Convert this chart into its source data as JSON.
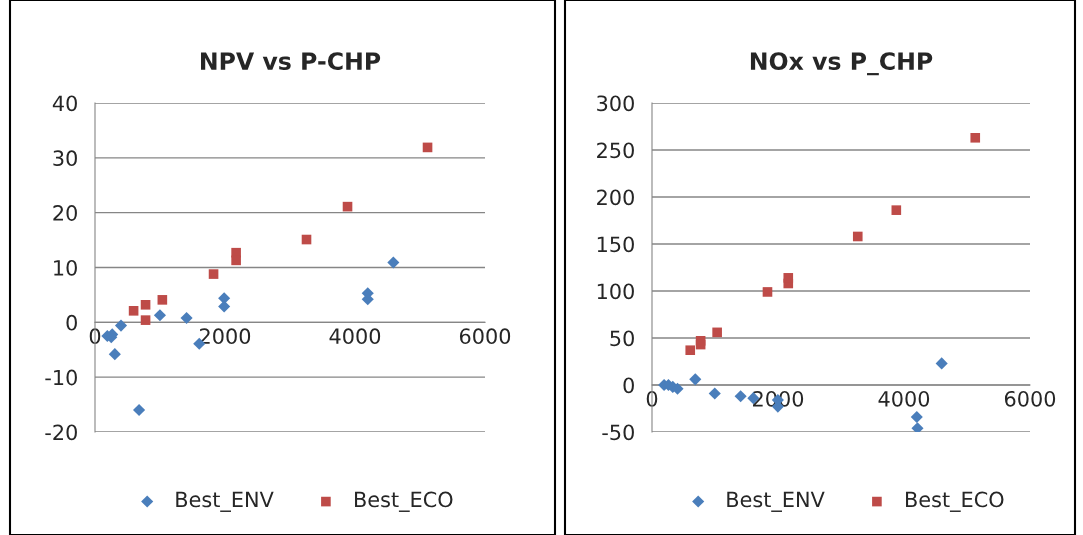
{
  "chart_data": [
    {
      "type": "scatter",
      "title": "NPV vs P-CHP",
      "xlim": [
        0,
        6000
      ],
      "xticks": [
        0,
        2000,
        4000,
        6000
      ],
      "ylim": [
        -20,
        40
      ],
      "yticks": [
        -20,
        -10,
        0,
        10,
        20,
        30,
        40
      ],
      "grid": "y",
      "legend": "bottom",
      "series": [
        {
          "name": "Best_ENV",
          "color": "#4a7ebb",
          "marker": "diamond",
          "x": [
            190,
            250,
            265,
            305,
            400,
            678,
            999,
            1409,
            1604,
            1987,
            1987,
            4196,
            4196,
            4590
          ],
          "values": [
            -2.5,
            -2.7,
            -2.2,
            -5.8,
            -0.6,
            -16.0,
            1.3,
            0.8,
            -3.9,
            4.4,
            2.9,
            5.3,
            4.2,
            10.9
          ]
        },
        {
          "name": "Best_ECO",
          "color": "#be4b48",
          "marker": "square",
          "x": [
            594,
            778,
            778,
            1036,
            1824,
            2171,
            2171,
            3254,
            3885,
            5116
          ],
          "values": [
            2.1,
            3.2,
            0.4,
            4.1,
            8.8,
            12.7,
            11.3,
            15.1,
            21.1,
            31.9
          ]
        }
      ]
    },
    {
      "type": "scatter",
      "title": "NOx vs P_CHP",
      "xlim": [
        0,
        6000
      ],
      "xticks": [
        0,
        2000,
        4000,
        6000
      ],
      "ylim": [
        -50,
        300
      ],
      "yticks": [
        -50,
        0,
        50,
        100,
        150,
        200,
        250,
        300
      ],
      "grid": "y",
      "legend": "bottom",
      "series": [
        {
          "name": "Best_ENV",
          "color": "#4a7ebb",
          "marker": "diamond",
          "x": [
            192,
            261,
            330,
            405,
            687,
            996,
            1407,
            1609,
            1998,
            1998,
            4203,
            4214,
            4598
          ],
          "values": [
            0,
            0,
            -2,
            -4,
            6,
            -9,
            -12,
            -14,
            -16,
            -23,
            -34,
            -46,
            23
          ]
        },
        {
          "name": "Best_ECO",
          "color": "#be4b48",
          "marker": "square",
          "x": [
            607,
            772,
            772,
            1034,
            1833,
            2163,
            2163,
            3266,
            3878,
            5131
          ],
          "values": [
            37,
            43,
            47,
            56,
            99,
            108,
            114,
            158,
            186,
            263
          ]
        }
      ]
    }
  ]
}
